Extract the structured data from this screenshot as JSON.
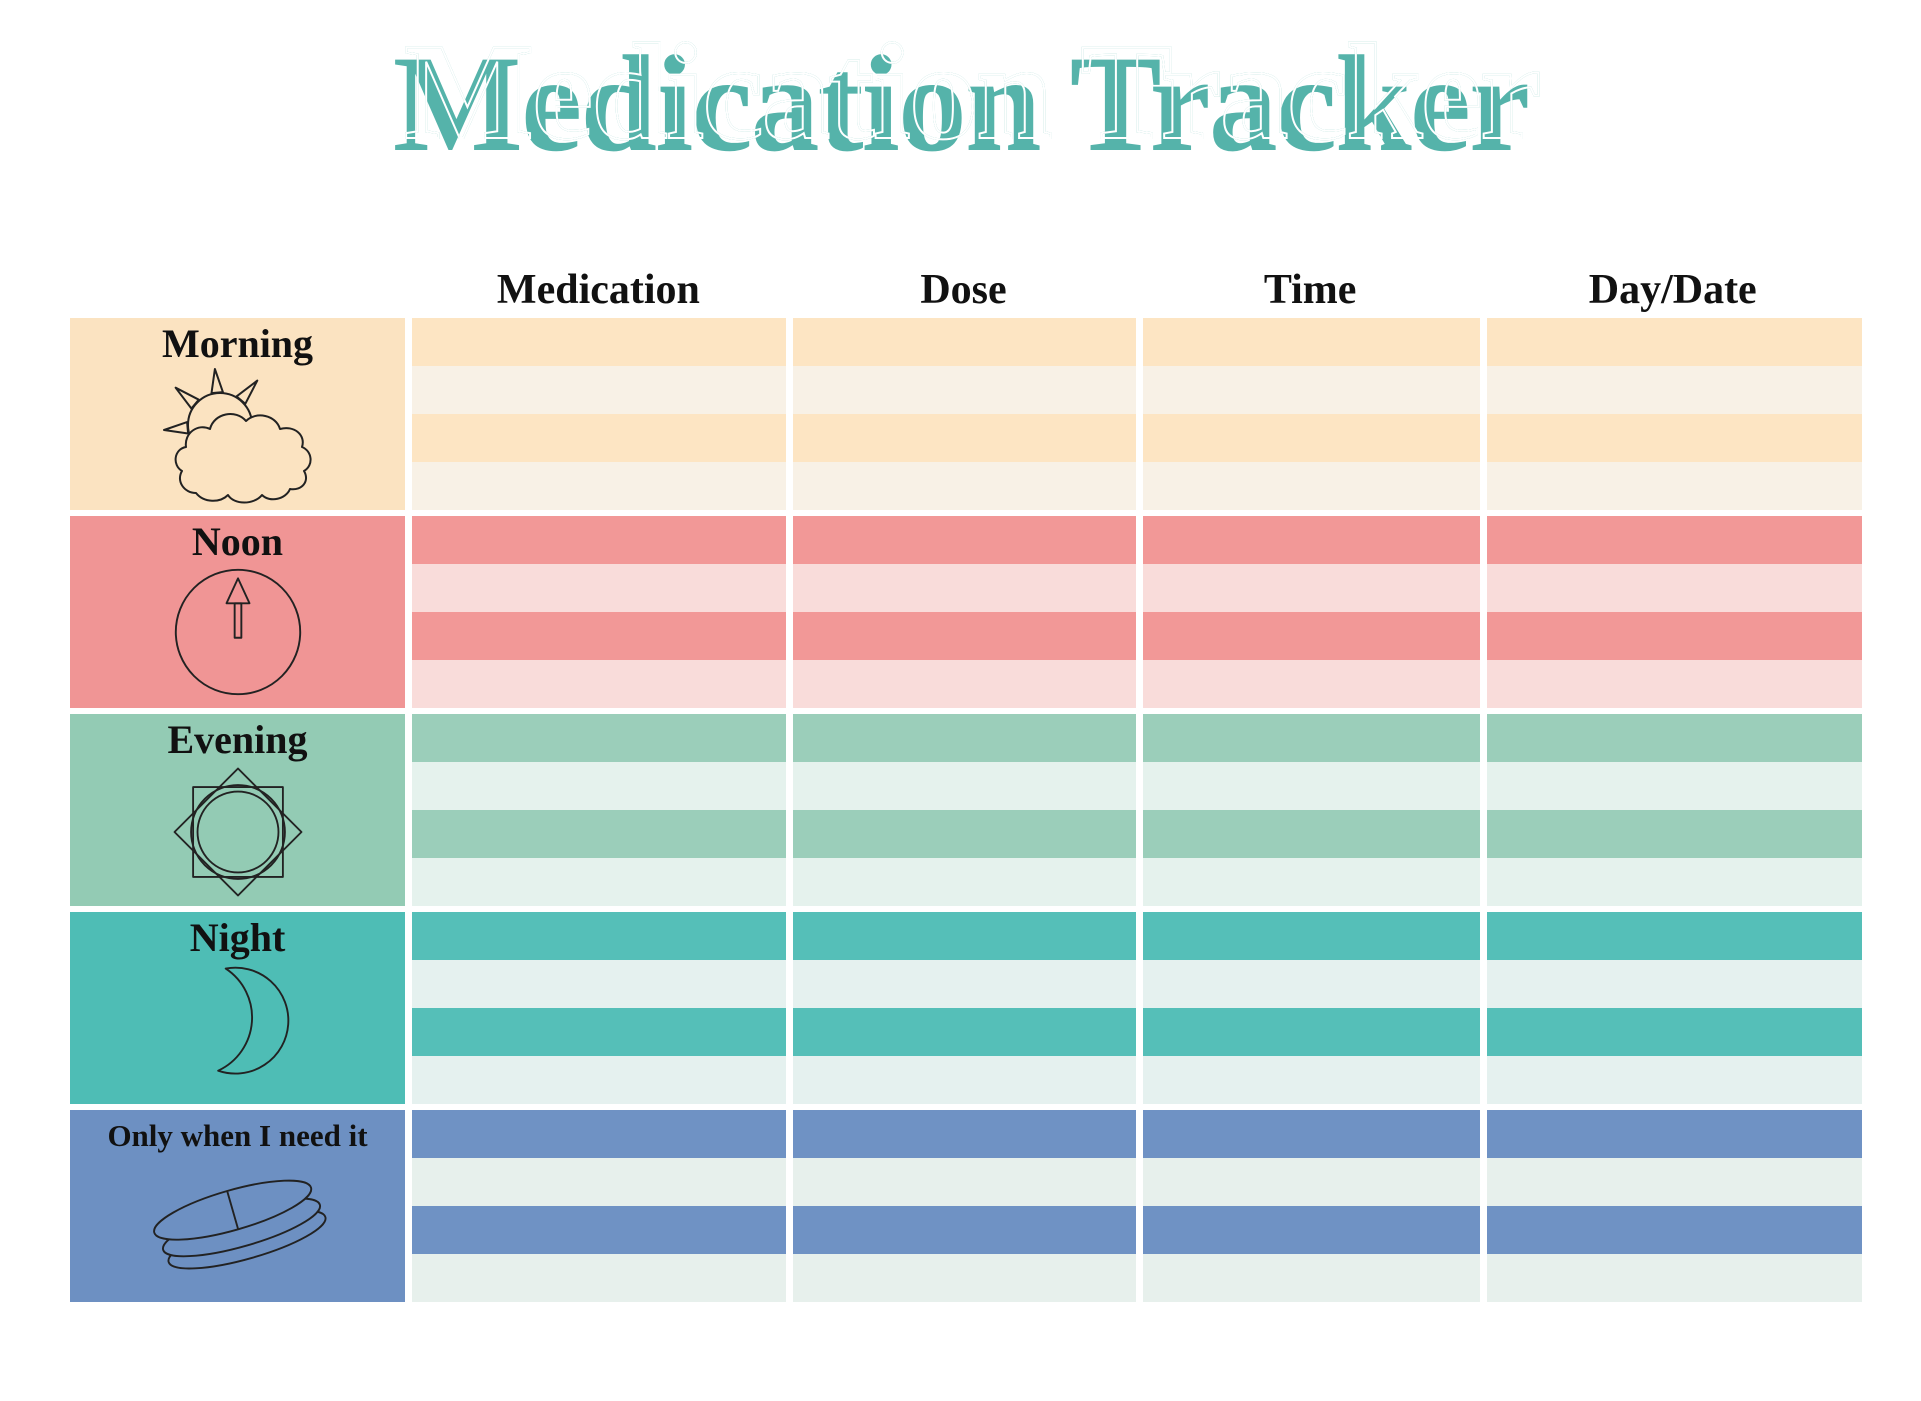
{
  "page": {
    "title": "Medication Tracker",
    "title_color": "#55b3aa",
    "background": "#ffffff"
  },
  "table": {
    "column_headers": [
      "Medication",
      "Dose",
      "Time",
      "Day/Date"
    ],
    "sections": [
      {
        "label": "Morning",
        "icon": "sun-behind-cloud-icon",
        "rows": 4,
        "colors": {
          "label_bg": "#fbe3c1",
          "row_dark": "#fde5c3",
          "row_light": "#f8f1e6"
        }
      },
      {
        "label": "Noon",
        "icon": "clock-pointing-up-icon",
        "rows": 4,
        "colors": {
          "label_bg": "#f09595",
          "row_dark": "#f29897",
          "row_light": "#f9dcda"
        }
      },
      {
        "label": "Evening",
        "icon": "eight-point-sun-icon",
        "rows": 4,
        "colors": {
          "label_bg": "#93cbb4",
          "row_dark": "#9bceba",
          "row_light": "#e5f2ed"
        }
      },
      {
        "label": "Night",
        "icon": "crescent-moon-icon",
        "rows": 4,
        "colors": {
          "label_bg": "#4ebdb5",
          "row_dark": "#55bfb8",
          "row_light": "#e5f1ef"
        }
      },
      {
        "label": "Only when I need it",
        "icon": "pills-icon",
        "rows": 4,
        "colors": {
          "label_bg": "#6d90c2",
          "row_dark": "#6f92c4",
          "row_light": "#e7f0ec"
        }
      }
    ]
  }
}
